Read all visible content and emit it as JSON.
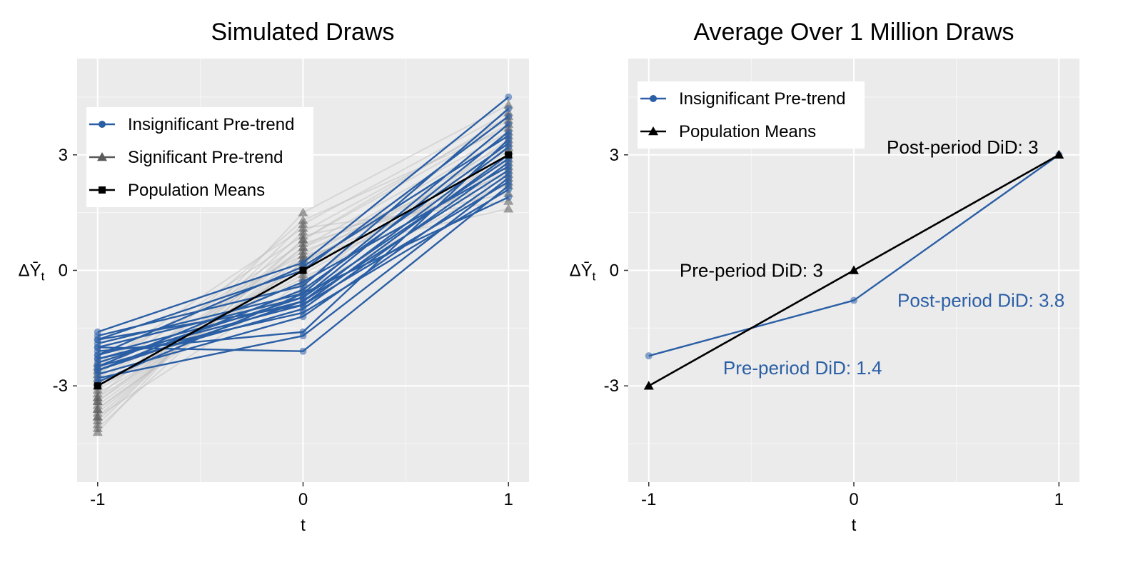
{
  "colors": {
    "panel_bg": "#EBEBEB",
    "grid_major": "#FFFFFF",
    "grid_minor": "#F5F5F5",
    "insignificant": "#2B5FA5",
    "significant": "#5A5A5A",
    "significant_faint": "#BDBDBD",
    "population": "#000000",
    "blue_text": "#2B5FA5"
  },
  "ylabel_text": "ΔȲ",
  "ylabel_sub": "t",
  "chart_data": [
    {
      "type": "line",
      "title": "Simulated Draws",
      "xlabel": "t",
      "ylabel": "ΔȲt",
      "x": [
        -1,
        0,
        1
      ],
      "x_ticks": [
        "-1",
        "0",
        "1"
      ],
      "y_ticks": [
        "-3",
        "0",
        "3"
      ],
      "xlim": [
        -1.1,
        1.1
      ],
      "ylim": [
        -5.5,
        5.5
      ],
      "grid": true,
      "legend": {
        "placement": "top-left",
        "entries": [
          {
            "label": "Insignificant Pre-trend",
            "marker": "circle",
            "color": "#2B5FA5"
          },
          {
            "label": "Significant Pre-trend",
            "marker": "triangle",
            "color": "#5A5A5A"
          },
          {
            "label": "Population Means",
            "marker": "square",
            "color": "#000000"
          }
        ]
      },
      "series": [
        {
          "group": "significant",
          "values": [
            -4.2,
            1.5,
            4.3
          ]
        },
        {
          "group": "significant",
          "values": [
            -4.0,
            1.2,
            4.1
          ]
        },
        {
          "group": "significant",
          "values": [
            -3.9,
            1.0,
            3.9
          ]
        },
        {
          "group": "significant",
          "values": [
            -3.8,
            0.8,
            3.8
          ]
        },
        {
          "group": "significant",
          "values": [
            -3.7,
            0.6,
            3.6
          ]
        },
        {
          "group": "significant",
          "values": [
            -3.6,
            0.4,
            3.5
          ]
        },
        {
          "group": "significant",
          "values": [
            -3.5,
            0.3,
            3.3
          ]
        },
        {
          "group": "significant",
          "values": [
            -3.4,
            0.2,
            3.2
          ]
        },
        {
          "group": "significant",
          "values": [
            -3.3,
            0.0,
            3.0
          ]
        },
        {
          "group": "significant",
          "values": [
            -3.2,
            -0.1,
            2.9
          ]
        },
        {
          "group": "significant",
          "values": [
            -3.1,
            0.1,
            2.7
          ]
        },
        {
          "group": "significant",
          "values": [
            -3.0,
            -0.2,
            2.6
          ]
        },
        {
          "group": "significant",
          "values": [
            -2.9,
            0.5,
            2.5
          ]
        },
        {
          "group": "significant",
          "values": [
            -2.8,
            0.3,
            2.4
          ]
        },
        {
          "group": "significant",
          "values": [
            -2.7,
            0.7,
            2.2
          ]
        },
        {
          "group": "significant",
          "values": [
            -2.6,
            0.9,
            2.0
          ]
        },
        {
          "group": "significant",
          "values": [
            -2.5,
            1.1,
            1.8
          ]
        },
        {
          "group": "significant",
          "values": [
            -2.4,
            0.4,
            1.6
          ]
        },
        {
          "group": "significant",
          "values": [
            -3.4,
            0.6,
            2.8
          ]
        },
        {
          "group": "significant",
          "values": [
            -3.6,
            0.2,
            3.1
          ]
        },
        {
          "group": "significant",
          "values": [
            -3.8,
            -0.3,
            3.4
          ]
        },
        {
          "group": "significant",
          "values": [
            -4.1,
            0.8,
            4.0
          ]
        },
        {
          "group": "significant",
          "values": [
            -3.3,
            1.3,
            3.7
          ]
        },
        {
          "group": "significant",
          "values": [
            -3.0,
            -0.5,
            2.3
          ]
        },
        {
          "group": "insignificant",
          "values": [
            -1.6,
            0.2,
            4.5
          ]
        },
        {
          "group": "insignificant",
          "values": [
            -1.7,
            -0.4,
            4.2
          ]
        },
        {
          "group": "insignificant",
          "values": [
            -1.8,
            0.0,
            4.0
          ]
        },
        {
          "group": "insignificant",
          "values": [
            -1.9,
            -0.6,
            3.8
          ]
        },
        {
          "group": "insignificant",
          "values": [
            -2.0,
            -0.7,
            3.6
          ]
        },
        {
          "group": "insignificant",
          "values": [
            -2.1,
            -1.6,
            3.4
          ]
        },
        {
          "group": "insignificant",
          "values": [
            -2.2,
            -0.8,
            3.2
          ]
        },
        {
          "group": "insignificant",
          "values": [
            -2.3,
            -0.9,
            3.0
          ]
        },
        {
          "group": "insignificant",
          "values": [
            -2.4,
            -0.7,
            2.9
          ]
        },
        {
          "group": "insignificant",
          "values": [
            -2.5,
            -1.0,
            2.8
          ]
        },
        {
          "group": "insignificant",
          "values": [
            -2.6,
            -0.8,
            2.6
          ]
        },
        {
          "group": "insignificant",
          "values": [
            -2.7,
            -1.2,
            2.5
          ]
        },
        {
          "group": "insignificant",
          "values": [
            -2.8,
            -1.7,
            2.4
          ]
        },
        {
          "group": "insignificant",
          "values": [
            -2.0,
            -2.1,
            2.2
          ]
        },
        {
          "group": "insignificant",
          "values": [
            -2.3,
            -1.1,
            2.1
          ]
        },
        {
          "group": "insignificant",
          "values": [
            -2.9,
            -0.6,
            1.9
          ]
        },
        {
          "group": "insignificant",
          "values": [
            -2.6,
            -0.5,
            3.3
          ]
        },
        {
          "group": "insignificant",
          "values": [
            -1.8,
            -0.9,
            2.3
          ]
        },
        {
          "group": "insignificant",
          "values": [
            -2.2,
            0.1,
            3.5
          ]
        },
        {
          "group": "insignificant",
          "values": [
            -2.5,
            -0.3,
            2.7
          ]
        },
        {
          "group": "population",
          "values": [
            -3,
            0,
            3
          ]
        }
      ]
    },
    {
      "type": "line",
      "title": "Average Over 1 Million Draws",
      "xlabel": "t",
      "ylabel": "ΔȲt",
      "x": [
        -1,
        0,
        1
      ],
      "x_ticks": [
        "-1",
        "0",
        "1"
      ],
      "y_ticks": [
        "-3",
        "0",
        "3"
      ],
      "xlim": [
        -1.1,
        1.1
      ],
      "ylim": [
        -5.5,
        5.5
      ],
      "grid": true,
      "legend": {
        "placement": "top-left",
        "entries": [
          {
            "label": "Insignificant Pre-trend",
            "marker": "circle",
            "color": "#2B5FA5"
          },
          {
            "label": "Population Means",
            "marker": "triangle",
            "color": "#000000"
          }
        ]
      },
      "series": [
        {
          "group": "insignificant",
          "name": "Insignificant Pre-trend",
          "values": [
            -2.22,
            -0.78,
            3.0
          ]
        },
        {
          "group": "population",
          "name": "Population Means",
          "values": [
            -3,
            0,
            3
          ]
        }
      ],
      "annotations": [
        {
          "text": "Post-period DiD: 3",
          "x": 0.53,
          "y": 3.2,
          "anchor": "middle",
          "color": "#000000"
        },
        {
          "text": "Pre-period DiD: 3",
          "x": -0.5,
          "y": -0.0,
          "anchor": "middle",
          "color": "#000000"
        },
        {
          "text": "Post-period DiD: 3.8",
          "x": 0.62,
          "y": -0.78,
          "anchor": "middle",
          "color": "#2B5FA5"
        },
        {
          "text": "Pre-period DiD: 1.4",
          "x": -0.25,
          "y": -2.53,
          "anchor": "middle",
          "color": "#2B5FA5"
        }
      ]
    }
  ]
}
